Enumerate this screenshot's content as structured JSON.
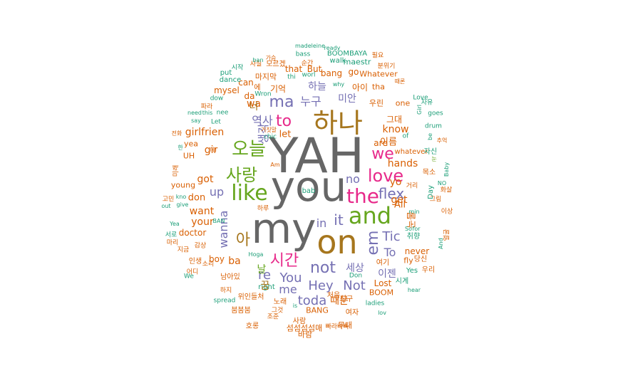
{
  "palette": [
    "#666666",
    "#a6761d",
    "#e6ab02",
    "#66a61e",
    "#e7298a",
    "#7570b3",
    "#d95f02",
    "#1b9e77"
  ],
  "words": [
    {
      "text": "YAH",
      "c": 0
    },
    {
      "text": "you",
      "c": 0
    },
    {
      "text": "my",
      "c": 0
    },
    {
      "text": "on",
      "c": 1
    },
    {
      "text": "하나",
      "c": 1
    },
    {
      "text": "and",
      "c": 3
    },
    {
      "text": "the",
      "c": 4
    },
    {
      "text": "like",
      "c": 3
    },
    {
      "text": "love",
      "c": 4
    },
    {
      "text": "오늘",
      "c": 3
    },
    {
      "text": "사랑",
      "c": 3
    },
    {
      "text": "we",
      "c": 4
    },
    {
      "text": "to",
      "c": 4
    },
    {
      "text": "ma",
      "c": 5
    },
    {
      "text": "flex",
      "c": 5
    },
    {
      "text": "it",
      "c": 5
    },
    {
      "text": "em",
      "c": 5
    },
    {
      "text": "not",
      "c": 5
    },
    {
      "text": "시간",
      "c": 4
    },
    {
      "text": "in",
      "c": 5
    },
    {
      "text": "no",
      "c": 5
    },
    {
      "text": "Tic",
      "c": 5
    },
    {
      "text": "아",
      "c": 1
    },
    {
      "text": "Hey",
      "c": 5
    },
    {
      "text": "You",
      "c": 5
    },
    {
      "text": "toda",
      "c": 5
    },
    {
      "text": "Not",
      "c": 5
    },
    {
      "text": "re",
      "c": 5
    },
    {
      "text": "wanna",
      "c": 5
    },
    {
      "text": "up",
      "c": 5
    },
    {
      "text": "me",
      "c": 5
    },
    {
      "text": "To",
      "c": 5
    },
    {
      "text": "누구",
      "c": 5
    },
    {
      "text": "역사",
      "c": 5
    },
    {
      "text": "생각",
      "c": 5
    },
    {
      "text": "하늘",
      "c": 5
    },
    {
      "text": "미안",
      "c": 5
    },
    {
      "text": "세상",
      "c": 5
    },
    {
      "text": "이젠",
      "c": 5
    },
    {
      "text": "hands",
      "c": 6
    },
    {
      "text": "know",
      "c": 6
    },
    {
      "text": "girlfrien",
      "c": 6
    },
    {
      "text": "gir",
      "c": 6
    },
    {
      "text": "got",
      "c": 6
    },
    {
      "text": "want",
      "c": 6
    },
    {
      "text": "your",
      "c": 6
    },
    {
      "text": "don",
      "c": 6
    },
    {
      "text": "ba",
      "c": 6
    },
    {
      "text": "boy",
      "c": 6
    },
    {
      "text": "get",
      "c": 6
    },
    {
      "text": "yo",
      "c": 6
    },
    {
      "text": "All",
      "c": 6
    },
    {
      "text": "wa",
      "c": 6
    },
    {
      "text": "let",
      "c": 6
    },
    {
      "text": "da",
      "c": 6
    },
    {
      "text": "are",
      "c": 6
    },
    {
      "text": "bang",
      "c": 6
    },
    {
      "text": "that",
      "c": 6
    },
    {
      "text": "But",
      "c": 6
    },
    {
      "text": "go",
      "c": 6
    },
    {
      "text": "mysel",
      "c": 6
    },
    {
      "text": "can",
      "c": 6
    },
    {
      "text": "Lost",
      "c": 6
    },
    {
      "text": "BOOM",
      "c": 6
    },
    {
      "text": "BANG",
      "c": 6
    },
    {
      "text": "never",
      "c": 6
    },
    {
      "text": "fly",
      "c": 6
    },
    {
      "text": "doctor",
      "c": 6
    },
    {
      "text": "young",
      "c": 6
    },
    {
      "text": "UH",
      "c": 6
    },
    {
      "text": "yea",
      "c": 6
    },
    {
      "text": "이름",
      "c": 6
    },
    {
      "text": "그대",
      "c": 6
    },
    {
      "text": "눈물",
      "c": 6
    },
    {
      "text": "기억",
      "c": 6
    },
    {
      "text": "우린",
      "c": 6
    },
    {
      "text": "one",
      "c": 6
    },
    {
      "text": "아이",
      "c": 6
    },
    {
      "text": "tha",
      "c": 6
    },
    {
      "text": "Whatever",
      "c": 6
    },
    {
      "text": "whatever",
      "c": 6
    },
    {
      "text": "Love",
      "c": 7
    },
    {
      "text": "drum",
      "c": 7
    },
    {
      "text": "madeleine",
      "c": 7
    },
    {
      "text": "ready",
      "c": 7
    },
    {
      "text": "bass",
      "c": 7
    },
    {
      "text": "BOOMBAYA",
      "c": 7
    },
    {
      "text": "필요",
      "c": 6
    },
    {
      "text": "분위기",
      "c": 6
    },
    {
      "text": "maestr",
      "c": 7
    },
    {
      "text": "때론",
      "c": 6
    },
    {
      "text": "시작",
      "c": 7
    },
    {
      "text": "dance",
      "c": 7
    },
    {
      "text": "put",
      "c": 7
    },
    {
      "text": "마지막",
      "c": 6
    },
    {
      "text": "모르겠",
      "c": 6
    },
    {
      "text": "walk",
      "c": 7
    },
    {
      "text": "why",
      "c": 7
    },
    {
      "text": "thi",
      "c": 7
    },
    {
      "text": "worl",
      "c": 7
    },
    {
      "text": "dow",
      "c": 7
    },
    {
      "text": "Wron",
      "c": 7
    },
    {
      "text": "say",
      "c": 7
    },
    {
      "text": "need",
      "c": 7
    },
    {
      "text": "this",
      "c": 7
    },
    {
      "text": "nee",
      "c": 7
    },
    {
      "text": "Let",
      "c": 7
    },
    {
      "text": "파라",
      "c": 6
    },
    {
      "text": "거짓말",
      "c": 6
    },
    {
      "text": "chic",
      "c": 7
    },
    {
      "text": "for",
      "c": 7
    },
    {
      "text": "So",
      "c": 7
    },
    {
      "text": "min",
      "c": 7
    },
    {
      "text": "kno",
      "c": 7
    },
    {
      "text": "give",
      "c": 7
    },
    {
      "text": "out",
      "c": 7
    },
    {
      "text": "Yea",
      "c": 7
    },
    {
      "text": "spread",
      "c": 7
    },
    {
      "text": "We",
      "c": 7
    },
    {
      "text": "right",
      "c": 7
    },
    {
      "text": "Don",
      "c": 7
    },
    {
      "text": "ladies",
      "c": 7
    },
    {
      "text": "lov",
      "c": 7
    },
    {
      "text": "hear",
      "c": 7
    },
    {
      "text": "Hoga",
      "c": 7
    },
    {
      "text": "is",
      "c": 7
    },
    {
      "text": "of",
      "c": 7
    },
    {
      "text": "NO",
      "c": 7
    },
    {
      "text": "And",
      "c": 7
    },
    {
      "text": "Baby",
      "c": 7
    },
    {
      "text": "Yes",
      "c": 7
    },
    {
      "text": "Am",
      "c": 6
    },
    {
      "text": "be",
      "c": 7
    },
    {
      "text": "goes",
      "c": 7
    },
    {
      "text": "자유",
      "c": 7
    },
    {
      "text": "추억",
      "c": 6
    },
    {
      "text": "자신",
      "c": 7
    },
    {
      "text": "목소",
      "c": 6
    },
    {
      "text": "화살",
      "c": 6
    },
    {
      "text": "그림",
      "c": 6
    },
    {
      "text": "이상",
      "c": 6
    },
    {
      "text": "얼굴",
      "c": 6
    },
    {
      "text": "취향",
      "c": 7
    },
    {
      "text": "당신",
      "c": 6
    },
    {
      "text": "우리",
      "c": 6
    },
    {
      "text": "시계",
      "c": 7
    },
    {
      "text": "여기",
      "c": 6
    },
    {
      "text": "친구",
      "c": 6
    },
    {
      "text": "여자",
      "c": 6
    },
    {
      "text": "무대",
      "c": 6
    },
    {
      "text": "빠라바빠",
      "c": 6
    },
    {
      "text": "바람",
      "c": 6
    },
    {
      "text": "섬섬섬섬매",
      "c": 6
    },
    {
      "text": "호롱",
      "c": 6
    },
    {
      "text": "조준",
      "c": 6
    },
    {
      "text": "그것",
      "c": 6
    },
    {
      "text": "노래",
      "c": 6
    },
    {
      "text": "사람",
      "c": 6
    },
    {
      "text": "붐붐붐",
      "c": 6
    },
    {
      "text": "위인들처",
      "c": 6
    },
    {
      "text": "하지",
      "c": 6
    },
    {
      "text": "남아있",
      "c": 6
    },
    {
      "text": "어디",
      "c": 6
    },
    {
      "text": "인생",
      "c": 6
    },
    {
      "text": "지금",
      "c": 6
    },
    {
      "text": "마리",
      "c": 6
    },
    {
      "text": "서로",
      "c": 7
    },
    {
      "text": "고민",
      "c": 6
    },
    {
      "text": "미래",
      "c": 6
    },
    {
      "text": "감상",
      "c": 6
    },
    {
      "text": "소리",
      "c": 6
    },
    {
      "text": "전화",
      "c": 6
    },
    {
      "text": "가슴",
      "c": 6
    },
    {
      "text": "순간",
      "c": 6
    },
    {
      "text": "하루",
      "c": 6
    },
    {
      "text": "사실",
      "c": 6
    },
    {
      "text": "처음",
      "c": 6
    },
    {
      "text": "에",
      "c": 6
    },
    {
      "text": "거리",
      "c": 6
    },
    {
      "text": "때문",
      "c": 6
    },
    {
      "text": "한",
      "c": 7
    },
    {
      "text": "날",
      "c": 3
    },
    {
      "text": "꿈",
      "c": 1
    },
    {
      "text": "너",
      "c": 1
    },
    {
      "text": "눈",
      "c": 3
    },
    {
      "text": "곤",
      "c": 6
    },
    {
      "text": "Day",
      "c": 7
    },
    {
      "text": "Girl",
      "c": 7
    },
    {
      "text": "BAN",
      "c": 7
    },
    {
      "text": "ban",
      "c": 7
    },
    {
      "text": "bab",
      "c": 7
    }
  ]
}
